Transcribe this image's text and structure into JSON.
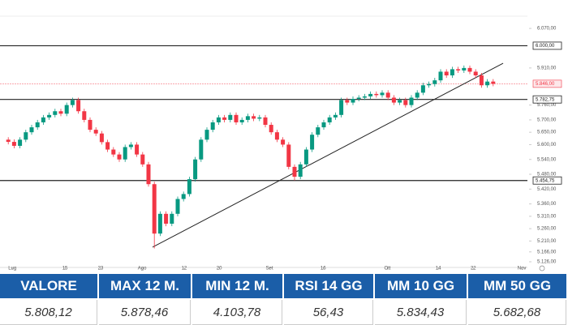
{
  "chart_data": {
    "type": "candlestick",
    "up_color": "#089981",
    "down_color": "#f23645",
    "x": [
      0,
      1,
      2,
      3,
      4,
      5,
      6,
      7,
      8,
      9,
      10,
      11,
      12,
      13,
      14,
      15,
      16,
      17,
      18,
      19,
      20,
      21,
      22,
      23,
      24,
      25,
      26,
      27,
      28,
      29,
      30,
      31,
      32,
      33,
      34,
      35,
      36,
      37,
      38,
      39,
      40,
      41,
      42,
      43,
      44,
      45,
      46,
      47,
      48,
      49,
      50,
      51,
      52,
      53,
      54,
      55,
      56,
      57,
      58,
      59,
      60,
      61,
      62,
      63,
      64,
      65,
      66,
      67,
      68,
      69,
      70,
      71,
      72,
      73,
      74,
      75,
      76,
      77,
      78,
      79,
      80,
      81,
      82,
      83
    ],
    "open": [
      5620,
      5611,
      5595,
      5620,
      5650,
      5670,
      5690,
      5710,
      5720,
      5735,
      5725,
      5760,
      5780,
      5735,
      5700,
      5660,
      5645,
      5610,
      5580,
      5560,
      5540,
      5590,
      5600,
      5560,
      5520,
      5440,
      5240,
      5320,
      5280,
      5320,
      5380,
      5400,
      5460,
      5540,
      5620,
      5660,
      5690,
      5710,
      5700,
      5720,
      5690,
      5700,
      5715,
      5705,
      5710,
      5680,
      5650,
      5620,
      5600,
      5510,
      5470,
      5520,
      5580,
      5640,
      5670,
      5690,
      5710,
      5720,
      5780,
      5770,
      5785,
      5790,
      5795,
      5805,
      5800,
      5810,
      5790,
      5770,
      5780,
      5760,
      5790,
      5810,
      5840,
      5845,
      5860,
      5895,
      5880,
      5905,
      5900,
      5910,
      5895,
      5880,
      5840,
      5855
    ],
    "high": [
      5630,
      5621,
      5630,
      5660,
      5680,
      5700,
      5720,
      5730,
      5745,
      5745,
      5770,
      5790,
      5790,
      5745,
      5710,
      5670,
      5655,
      5620,
      5590,
      5570,
      5600,
      5610,
      5610,
      5570,
      5530,
      5450,
      5330,
      5330,
      5330,
      5390,
      5410,
      5470,
      5550,
      5630,
      5670,
      5700,
      5720,
      5720,
      5730,
      5730,
      5710,
      5725,
      5725,
      5720,
      5720,
      5690,
      5660,
      5630,
      5610,
      5520,
      5530,
      5590,
      5650,
      5680,
      5700,
      5720,
      5730,
      5790,
      5790,
      5795,
      5800,
      5805,
      5815,
      5815,
      5820,
      5820,
      5800,
      5790,
      5790,
      5800,
      5820,
      5850,
      5855,
      5870,
      5905,
      5905,
      5915,
      5915,
      5920,
      5920,
      5905,
      5890,
      5865,
      5865
    ],
    "low": [
      5601,
      5585,
      5585,
      5610,
      5640,
      5660,
      5680,
      5700,
      5710,
      5715,
      5715,
      5750,
      5725,
      5690,
      5650,
      5635,
      5600,
      5570,
      5550,
      5530,
      5530,
      5580,
      5550,
      5510,
      5430,
      5180,
      5230,
      5270,
      5270,
      5310,
      5370,
      5390,
      5450,
      5530,
      5610,
      5650,
      5680,
      5690,
      5690,
      5680,
      5680,
      5690,
      5695,
      5695,
      5670,
      5640,
      5610,
      5590,
      5500,
      5455,
      5460,
      5510,
      5570,
      5630,
      5660,
      5680,
      5700,
      5710,
      5760,
      5760,
      5775,
      5780,
      5785,
      5790,
      5790,
      5780,
      5760,
      5760,
      5750,
      5750,
      5780,
      5800,
      5830,
      5835,
      5850,
      5870,
      5870,
      5890,
      5890,
      5885,
      5870,
      5830,
      5830,
      5836
    ],
    "close": [
      5611,
      5595,
      5620,
      5650,
      5670,
      5690,
      5710,
      5720,
      5735,
      5725,
      5760,
      5780,
      5735,
      5700,
      5660,
      5645,
      5610,
      5580,
      5560,
      5540,
      5590,
      5600,
      5560,
      5520,
      5440,
      5240,
      5320,
      5280,
      5320,
      5380,
      5400,
      5460,
      5540,
      5620,
      5660,
      5690,
      5710,
      5700,
      5720,
      5690,
      5700,
      5715,
      5705,
      5710,
      5680,
      5650,
      5620,
      5600,
      5510,
      5470,
      5520,
      5580,
      5640,
      5670,
      5690,
      5710,
      5720,
      5780,
      5770,
      5785,
      5790,
      5795,
      5805,
      5800,
      5810,
      5790,
      5770,
      5780,
      5760,
      5790,
      5810,
      5840,
      5845,
      5860,
      5895,
      5880,
      5905,
      5900,
      5910,
      5895,
      5880,
      5840,
      5855,
      5846
    ],
    "xlim": [
      -1,
      92
    ],
    "ylim": [
      5103,
      6185
    ],
    "xticks": [
      {
        "value": 0.7,
        "label": "Lug"
      },
      {
        "value": 9.7,
        "label": "15"
      },
      {
        "value": 15.8,
        "label": "23"
      },
      {
        "value": 22.9,
        "label": "Ago"
      },
      {
        "value": 30.1,
        "label": "12"
      },
      {
        "value": 36.1,
        "label": "20"
      },
      {
        "value": 44.7,
        "label": "Set"
      },
      {
        "value": 53.9,
        "label": "16"
      },
      {
        "value": 64.9,
        "label": "Ott"
      },
      {
        "value": 73.6,
        "label": "14"
      },
      {
        "value": 79.6,
        "label": "22"
      },
      {
        "value": 87.9,
        "label": "Nov"
      }
    ],
    "yticks": [
      {
        "value": 6070,
        "label": "6.070,00"
      },
      {
        "value": 5910,
        "label": "5.910,00"
      },
      {
        "value": 5760,
        "label": "5.760,00"
      },
      {
        "value": 5700,
        "label": "5.700,00"
      },
      {
        "value": 5650,
        "label": "5.650,00"
      },
      {
        "value": 5600,
        "label": "5.600,00"
      },
      {
        "value": 5540,
        "label": "5.540,00"
      },
      {
        "value": 5480,
        "label": "5.480,00"
      },
      {
        "value": 5420,
        "label": "5.420,00"
      },
      {
        "value": 5360,
        "label": "5.360,00"
      },
      {
        "value": 5310,
        "label": "5.310,00"
      },
      {
        "value": 5260,
        "label": "5.260,00"
      },
      {
        "value": 5210,
        "label": "5.210,00"
      },
      {
        "value": 5166,
        "label": "5.166,00"
      },
      {
        "value": 5126,
        "label": "5.126,00"
      }
    ],
    "levels": [
      {
        "value": 6000,
        "label": "6.000,00",
        "color": "#222222"
      },
      {
        "value": 5782.75,
        "label": "5.782,75",
        "color": "#222222"
      },
      {
        "value": 5454.75,
        "label": "5.454,75",
        "color": "#222222"
      }
    ],
    "last_price": {
      "value": 5846,
      "label": "5.846,00",
      "color": "#f23645"
    },
    "trendline": {
      "x": [
        24.7,
        84.7
      ],
      "y": [
        5185,
        5929
      ]
    },
    "grid": false
  },
  "table": {
    "header": [
      "VALORE",
      "MAX 12 M.",
      "MIN 12 M.",
      "RSI 14 GG",
      "MM 10 GG",
      "MM 50 GG"
    ],
    "rows": [
      [
        "5.808,12",
        "5.878,46",
        "4.103,78",
        "56,43",
        "5.834,43",
        "5.682,68"
      ]
    ]
  }
}
